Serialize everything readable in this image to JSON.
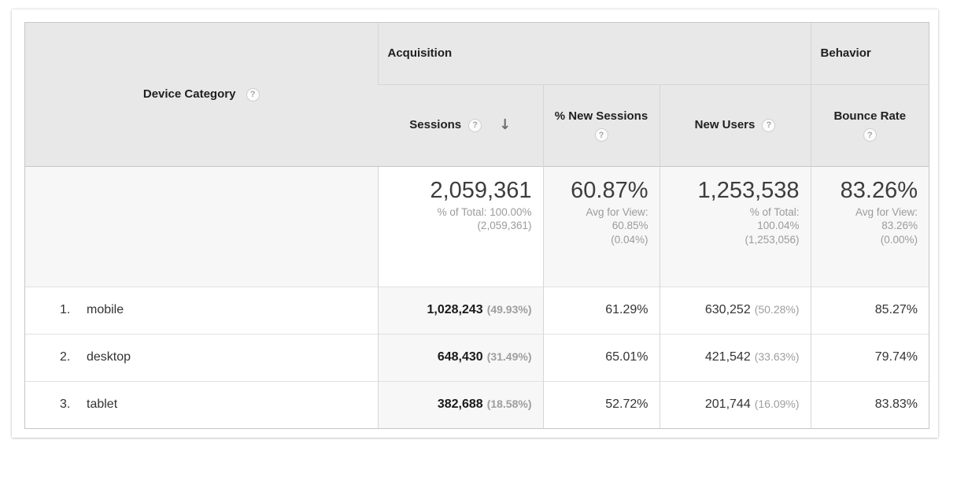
{
  "colors": {
    "header_bg": "#e8e8e8",
    "shaded_cell_bg": "#f7f7f7",
    "border_outer": "#c6c6c6",
    "subtext_gray": "#9b9b9b"
  },
  "table": {
    "dimension": {
      "label": "Device Category",
      "help": "?"
    },
    "groups": {
      "acquisition": "Acquisition",
      "behavior": "Behavior"
    },
    "columns": {
      "sessions": {
        "label": "Sessions",
        "help": "?",
        "sort": "↓"
      },
      "pct_new_sessions": {
        "label": "% New Sessions",
        "help": "?"
      },
      "new_users": {
        "label": "New Users",
        "help": "?"
      },
      "bounce_rate": {
        "label": "Bounce Rate",
        "help": "?"
      }
    },
    "summary": {
      "sessions": {
        "value": "2,059,361",
        "sub": [
          "% of Total: 100.00%",
          "(2,059,361)"
        ]
      },
      "pct_new_sessions": {
        "value": "60.87%",
        "sub": [
          "Avg for View:",
          "60.85%",
          "(0.04%)"
        ]
      },
      "new_users": {
        "value": "1,253,538",
        "sub": [
          "% of Total:",
          "100.04%",
          "(1,253,056)"
        ]
      },
      "bounce_rate": {
        "value": "83.26%",
        "sub": [
          "Avg for View:",
          "83.26%",
          "(0.00%)"
        ]
      }
    },
    "rows": [
      {
        "index": "1.",
        "name": "mobile",
        "sessions": "1,028,243",
        "sessions_share": "(49.93%)",
        "pct_new_sessions": "61.29%",
        "new_users": "630,252",
        "new_users_share": "(50.28%)",
        "bounce_rate": "85.27%"
      },
      {
        "index": "2.",
        "name": "desktop",
        "sessions": "648,430",
        "sessions_share": "(31.49%)",
        "pct_new_sessions": "65.01%",
        "new_users": "421,542",
        "new_users_share": "(33.63%)",
        "bounce_rate": "79.74%"
      },
      {
        "index": "3.",
        "name": "tablet",
        "sessions": "382,688",
        "sessions_share": "(18.58%)",
        "pct_new_sessions": "52.72%",
        "new_users": "201,744",
        "new_users_share": "(16.09%)",
        "bounce_rate": "83.83%"
      }
    ]
  }
}
